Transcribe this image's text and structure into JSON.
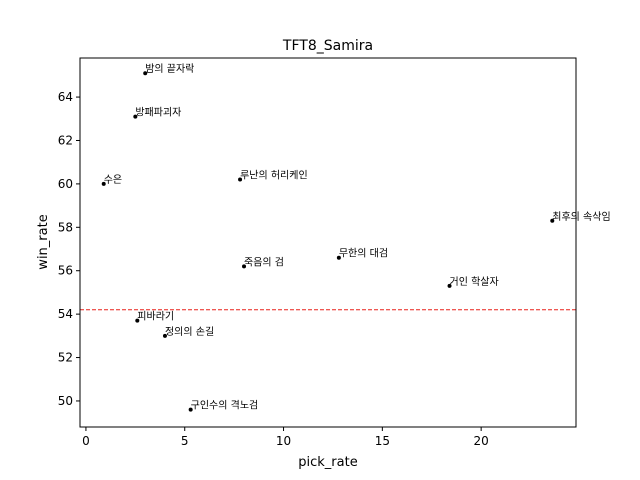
{
  "chart_data": {
    "type": "scatter",
    "title": "TFT8_Samira",
    "xlabel": "pick_rate",
    "ylabel": "win_rate",
    "xlim": [
      -0.3,
      24.8
    ],
    "ylim": [
      48.8,
      65.8
    ],
    "xticks": [
      0,
      5,
      10,
      15,
      20
    ],
    "yticks": [
      50,
      52,
      54,
      56,
      58,
      60,
      62,
      64
    ],
    "reference_line": {
      "y": 54.2,
      "color": "#e8201a",
      "style": "dashed"
    },
    "point_color": "#000000",
    "points": [
      {
        "label": "밤의 끝자락",
        "x": 3.0,
        "y": 65.1
      },
      {
        "label": "방패파괴자",
        "x": 2.5,
        "y": 63.1
      },
      {
        "label": "수은",
        "x": 0.9,
        "y": 60.0
      },
      {
        "label": "루난의 허리케인",
        "x": 7.8,
        "y": 60.2
      },
      {
        "label": "최후의 속삭임",
        "x": 23.6,
        "y": 58.3
      },
      {
        "label": "무한의 대검",
        "x": 12.8,
        "y": 56.6
      },
      {
        "label": "죽음의 검",
        "x": 8.0,
        "y": 56.2
      },
      {
        "label": "거인 학살자",
        "x": 18.4,
        "y": 55.3
      },
      {
        "label": "피바라기",
        "x": 2.6,
        "y": 53.7
      },
      {
        "label": "정의의 손길",
        "x": 4.0,
        "y": 53.0
      },
      {
        "label": "구인수의 격노검",
        "x": 5.3,
        "y": 49.6
      }
    ]
  }
}
